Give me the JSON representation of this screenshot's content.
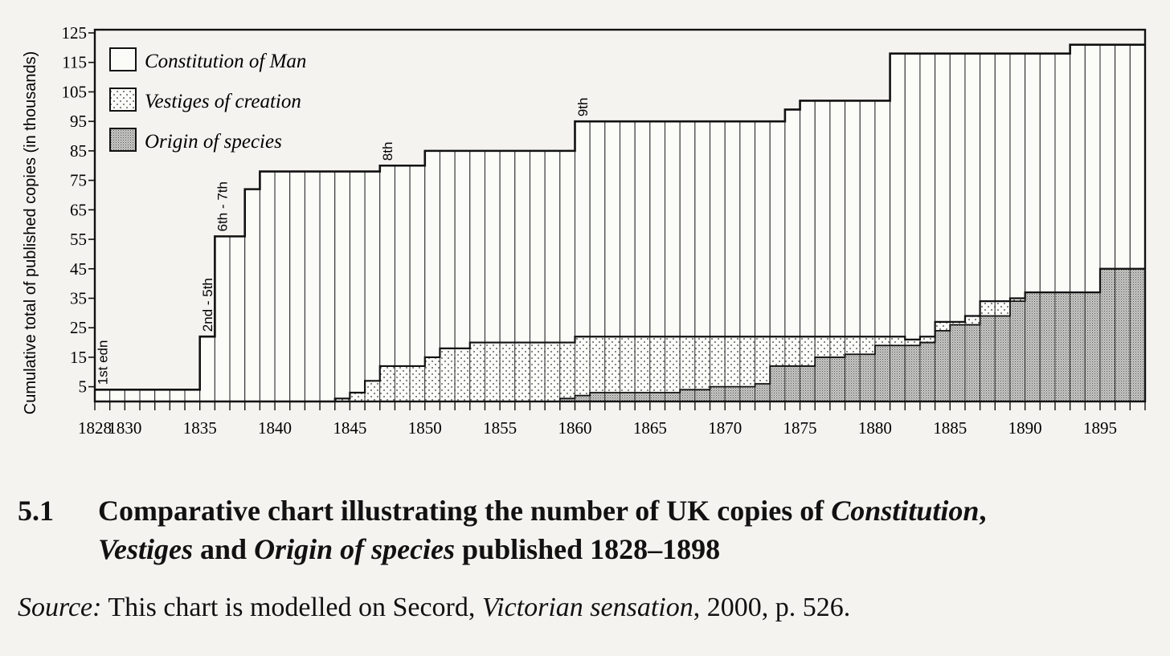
{
  "chart_data": {
    "type": "bar",
    "ylabel": "Cumulative total of published copies (in thousands)",
    "ylim": [
      0,
      125
    ],
    "y_ticks": [
      5,
      15,
      25,
      35,
      45,
      55,
      65,
      75,
      85,
      95,
      105,
      115,
      125
    ],
    "xlim": [
      1828,
      1898
    ],
    "x_tick_labels": [
      {
        "year": 1828,
        "label": "1828"
      },
      {
        "year": 1830,
        "label": "1830"
      },
      {
        "year": 1835,
        "label": "1835"
      },
      {
        "year": 1840,
        "label": "1840"
      },
      {
        "year": 1845,
        "label": "1845"
      },
      {
        "year": 1850,
        "label": "1850"
      },
      {
        "year": 1855,
        "label": "1855"
      },
      {
        "year": 1860,
        "label": "1860"
      },
      {
        "year": 1865,
        "label": "1865"
      },
      {
        "year": 1870,
        "label": "1870"
      },
      {
        "year": 1875,
        "label": "1875"
      },
      {
        "year": 1880,
        "label": "1880"
      },
      {
        "year": 1885,
        "label": "1885"
      },
      {
        "year": 1890,
        "label": "1890"
      },
      {
        "year": 1895,
        "label": "1895"
      }
    ],
    "grid": false,
    "legend_position": "top-left",
    "series": [
      {
        "name": "Constitution of Man",
        "pattern": "blank",
        "values": [
          {
            "year": 1828,
            "value": 4
          },
          {
            "year": 1835,
            "value": 22
          },
          {
            "year": 1836,
            "value": 56
          },
          {
            "year": 1838,
            "value": 72
          },
          {
            "year": 1839,
            "value": 78
          },
          {
            "year": 1847,
            "value": 80
          },
          {
            "year": 1849,
            "value": 80
          },
          {
            "year": 1850,
            "value": 85
          },
          {
            "year": 1860,
            "value": 95
          },
          {
            "year": 1874,
            "value": 99
          },
          {
            "year": 1875,
            "value": 102
          },
          {
            "year": 1881,
            "value": 118
          },
          {
            "year": 1893,
            "value": 121
          }
        ]
      },
      {
        "name": "Vestiges of creation",
        "pattern": "dotted",
        "values": [
          {
            "year": 1828,
            "value": 0
          },
          {
            "year": 1844,
            "value": 1
          },
          {
            "year": 1845,
            "value": 3
          },
          {
            "year": 1846,
            "value": 7
          },
          {
            "year": 1847,
            "value": 12
          },
          {
            "year": 1850,
            "value": 15
          },
          {
            "year": 1851,
            "value": 18
          },
          {
            "year": 1853,
            "value": 20
          },
          {
            "year": 1860,
            "value": 22
          },
          {
            "year": 1882,
            "value": 21
          },
          {
            "year": 1883,
            "value": 22
          },
          {
            "year": 1884,
            "value": 27
          },
          {
            "year": 1886,
            "value": 29
          },
          {
            "year": 1887,
            "value": 34
          },
          {
            "year": 1889,
            "value": 35
          },
          {
            "year": 1890,
            "value": 37
          }
        ]
      },
      {
        "name": "Origin of species",
        "pattern": "dense",
        "values": [
          {
            "year": 1828,
            "value": 0
          },
          {
            "year": 1859,
            "value": 1
          },
          {
            "year": 1860,
            "value": 2
          },
          {
            "year": 1861,
            "value": 3
          },
          {
            "year": 1867,
            "value": 4
          },
          {
            "year": 1869,
            "value": 5
          },
          {
            "year": 1872,
            "value": 6
          },
          {
            "year": 1873,
            "value": 12
          },
          {
            "year": 1876,
            "value": 15
          },
          {
            "year": 1878,
            "value": 16
          },
          {
            "year": 1880,
            "value": 19
          },
          {
            "year": 1883,
            "value": 20
          },
          {
            "year": 1884,
            "value": 24
          },
          {
            "year": 1885,
            "value": 26
          },
          {
            "year": 1887,
            "value": 29
          },
          {
            "year": 1889,
            "value": 34
          },
          {
            "year": 1890,
            "value": 37
          },
          {
            "year": 1895,
            "value": 45
          }
        ]
      }
    ],
    "annotations": [
      {
        "text": "1st edn",
        "year": 1828,
        "value": 4
      },
      {
        "text": "2nd - 5th",
        "year": 1835,
        "value": 22
      },
      {
        "text": "6th - 7th",
        "year": 1836,
        "value": 56
      },
      {
        "text": "8th",
        "year": 1847,
        "value": 80
      },
      {
        "text": "9th",
        "year": 1860,
        "value": 95
      }
    ]
  },
  "caption": {
    "number": "5.1",
    "part1": "Comparative chart illustrating the number of UK copies of ",
    "part2": "Constitution",
    "part3": ",",
    "part4": "Vestiges",
    "part5": " and ",
    "part6": "Origin of species",
    "part7": " published 1828–1898"
  },
  "source": {
    "label": "Source:",
    "text1": " This chart is modelled on Secord, ",
    "title": "Victorian sensation",
    "text2": ", 2000, p. 526."
  }
}
